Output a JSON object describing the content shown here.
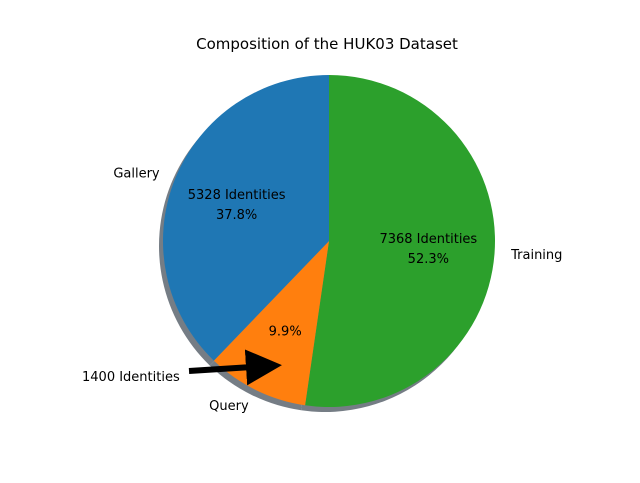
{
  "chart_data": {
    "type": "pie",
    "title": "Composition of the HUK03 Dataset",
    "slices": [
      {
        "label": "Training",
        "value": 52.3,
        "pct_label": "52.3%",
        "count_label": "7368 Identities",
        "color": "#2ca02c"
      },
      {
        "label": "Query",
        "value": 9.9,
        "pct_label": "9.9%",
        "count_label": "",
        "color": "#ff7f0e"
      },
      {
        "label": "Gallery",
        "value": 37.8,
        "pct_label": "37.8%",
        "count_label": "5328 Identities",
        "color": "#1f77b4"
      }
    ],
    "annotation": {
      "text": "1400 Identities",
      "target": "Query",
      "arrow_color": "#000000"
    },
    "shadow": true,
    "start_angle": 90,
    "direction": "clockwise"
  }
}
